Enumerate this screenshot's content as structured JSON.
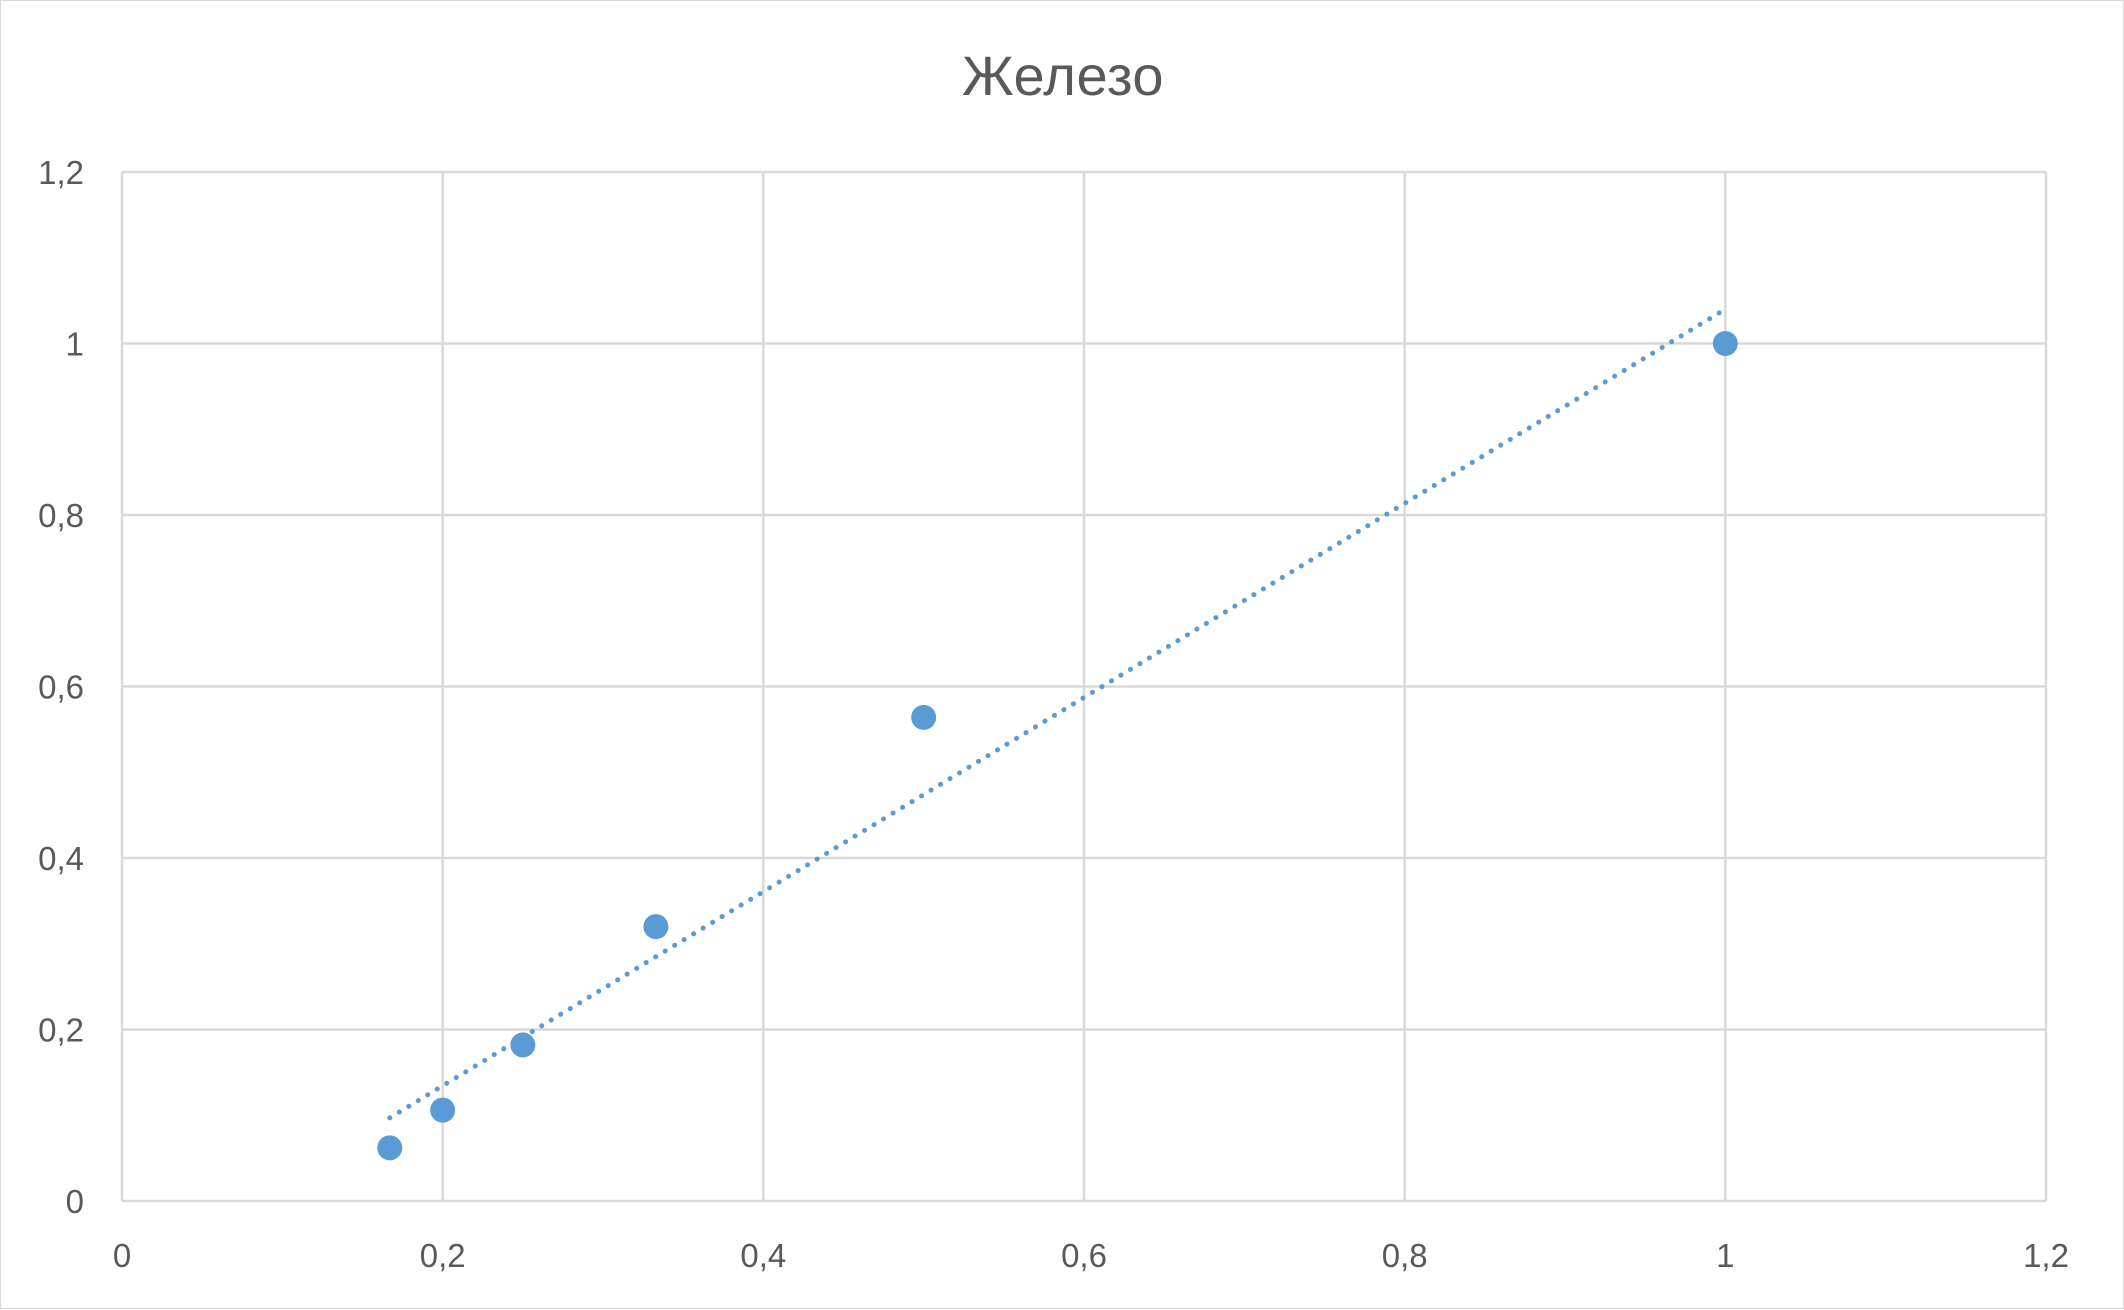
{
  "chart_data": {
    "type": "scatter",
    "title": "Железо",
    "xlabel": "",
    "ylabel": "",
    "xlim": [
      0,
      1.2
    ],
    "ylim": [
      0,
      1.2
    ],
    "x_ticks": [
      0,
      0.2,
      0.4,
      0.6,
      0.8,
      1,
      1.2
    ],
    "y_ticks": [
      0,
      0.2,
      0.4,
      0.6,
      0.8,
      1,
      1.2
    ],
    "x_tick_labels": [
      "0",
      "0,2",
      "0,4",
      "0,6",
      "0,8",
      "1",
      "1,2"
    ],
    "y_tick_labels": [
      "0",
      "0,2",
      "0,4",
      "0,6",
      "0,8",
      "1",
      "1,2"
    ],
    "grid": true,
    "legend": "none",
    "series": [
      {
        "color": "#5b9bd5",
        "points": [
          {
            "x": 0.167,
            "y": 0.062
          },
          {
            "x": 0.2,
            "y": 0.106
          },
          {
            "x": 0.25,
            "y": 0.182
          },
          {
            "x": 0.333,
            "y": 0.32
          },
          {
            "x": 0.5,
            "y": 0.564
          },
          {
            "x": 1,
            "y": 1
          }
        ]
      }
    ],
    "trendline": {
      "type": "linear",
      "style": "dotted",
      "color": "#5b9bd5",
      "from": {
        "x": 0.167,
        "y": 0.097
      },
      "to": {
        "x": 1,
        "y": 1.04
      }
    },
    "colors": {
      "grid": "#d9d9d9",
      "axis_text": "#595959",
      "title_text": "#595959"
    }
  }
}
